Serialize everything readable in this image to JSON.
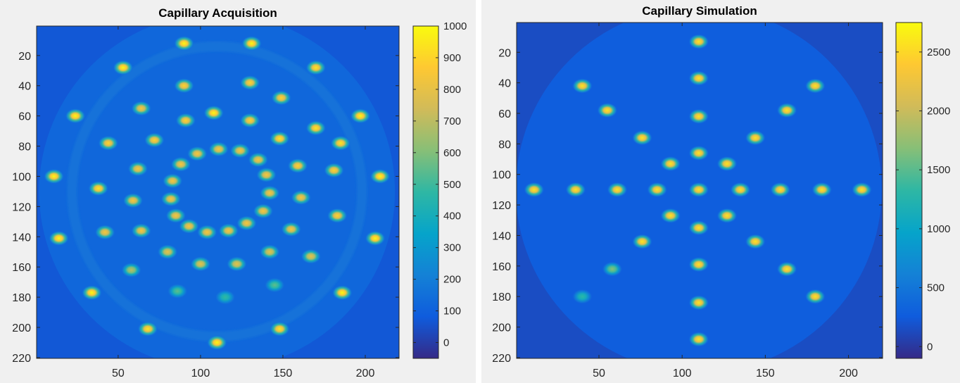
{
  "chart_data": [
    {
      "type": "heatmap",
      "title": "Capillary Acquisition",
      "colormap": "parula",
      "xlim": [
        0.5,
        220.5
      ],
      "ylim": [
        0.5,
        220.5
      ],
      "y_reversed": true,
      "xticks": [
        50,
        100,
        150,
        200
      ],
      "yticks": [
        20,
        40,
        60,
        80,
        100,
        120,
        140,
        160,
        180,
        200,
        220
      ],
      "colorbar": {
        "range": [
          -50,
          1000
        ],
        "ticks": [
          0,
          100,
          200,
          300,
          400,
          500,
          600,
          700,
          800,
          900,
          1000
        ]
      },
      "background_level": 70,
      "disk": {
        "center": [
          110,
          110
        ],
        "radius": 108,
        "level": 120
      },
      "ring": {
        "center": [
          110,
          110
        ],
        "radius": 88,
        "width": 6,
        "level": 160
      },
      "spots": [
        {
          "x": 90,
          "y": 12,
          "v": 1000
        },
        {
          "x": 131,
          "y": 12,
          "v": 1000
        },
        {
          "x": 53,
          "y": 28,
          "v": 1000
        },
        {
          "x": 170,
          "y": 28,
          "v": 950
        },
        {
          "x": 90,
          "y": 40,
          "v": 900
        },
        {
          "x": 130,
          "y": 38,
          "v": 900
        },
        {
          "x": 64,
          "y": 55,
          "v": 850
        },
        {
          "x": 149,
          "y": 48,
          "v": 900
        },
        {
          "x": 24,
          "y": 60,
          "v": 1000
        },
        {
          "x": 197,
          "y": 60,
          "v": 1000
        },
        {
          "x": 108,
          "y": 58,
          "v": 1000
        },
        {
          "x": 91,
          "y": 63,
          "v": 900
        },
        {
          "x": 130,
          "y": 63,
          "v": 900
        },
        {
          "x": 170,
          "y": 68,
          "v": 950
        },
        {
          "x": 44,
          "y": 78,
          "v": 900
        },
        {
          "x": 72,
          "y": 76,
          "v": 900
        },
        {
          "x": 148,
          "y": 75,
          "v": 950
        },
        {
          "x": 185,
          "y": 78,
          "v": 950
        },
        {
          "x": 98,
          "y": 85,
          "v": 850
        },
        {
          "x": 111,
          "y": 82,
          "v": 850
        },
        {
          "x": 124,
          "y": 83,
          "v": 850
        },
        {
          "x": 88,
          "y": 92,
          "v": 850
        },
        {
          "x": 135,
          "y": 89,
          "v": 850
        },
        {
          "x": 62,
          "y": 95,
          "v": 850
        },
        {
          "x": 159,
          "y": 93,
          "v": 900
        },
        {
          "x": 181,
          "y": 96,
          "v": 900
        },
        {
          "x": 11,
          "y": 100,
          "v": 1000
        },
        {
          "x": 209,
          "y": 100,
          "v": 1000
        },
        {
          "x": 83,
          "y": 103,
          "v": 850
        },
        {
          "x": 140,
          "y": 99,
          "v": 850
        },
        {
          "x": 38,
          "y": 108,
          "v": 950
        },
        {
          "x": 142,
          "y": 111,
          "v": 850
        },
        {
          "x": 82,
          "y": 115,
          "v": 850
        },
        {
          "x": 59,
          "y": 116,
          "v": 850
        },
        {
          "x": 161,
          "y": 114,
          "v": 850
        },
        {
          "x": 85,
          "y": 126,
          "v": 850
        },
        {
          "x": 138,
          "y": 123,
          "v": 850
        },
        {
          "x": 183,
          "y": 126,
          "v": 900
        },
        {
          "x": 64,
          "y": 136,
          "v": 850
        },
        {
          "x": 93,
          "y": 133,
          "v": 850
        },
        {
          "x": 128,
          "y": 131,
          "v": 850
        },
        {
          "x": 155,
          "y": 135,
          "v": 850
        },
        {
          "x": 42,
          "y": 137,
          "v": 850
        },
        {
          "x": 104,
          "y": 137,
          "v": 850
        },
        {
          "x": 117,
          "y": 136,
          "v": 850
        },
        {
          "x": 14,
          "y": 141,
          "v": 1000
        },
        {
          "x": 206,
          "y": 141,
          "v": 1000
        },
        {
          "x": 80,
          "y": 150,
          "v": 800
        },
        {
          "x": 142,
          "y": 150,
          "v": 800
        },
        {
          "x": 167,
          "y": 153,
          "v": 800
        },
        {
          "x": 100,
          "y": 158,
          "v": 800
        },
        {
          "x": 122,
          "y": 158,
          "v": 800
        },
        {
          "x": 58,
          "y": 162,
          "v": 700
        },
        {
          "x": 145,
          "y": 172,
          "v": 550
        },
        {
          "x": 86,
          "y": 176,
          "v": 550
        },
        {
          "x": 115,
          "y": 180,
          "v": 480
        },
        {
          "x": 34,
          "y": 177,
          "v": 1000
        },
        {
          "x": 186,
          "y": 177,
          "v": 1000
        },
        {
          "x": 68,
          "y": 201,
          "v": 950
        },
        {
          "x": 148,
          "y": 201,
          "v": 950
        },
        {
          "x": 110,
          "y": 210,
          "v": 1000
        }
      ]
    },
    {
      "type": "heatmap",
      "title": "Capillary Simulation",
      "colormap": "parula",
      "xlim": [
        0.5,
        220.5
      ],
      "ylim": [
        0.5,
        220.5
      ],
      "y_reversed": true,
      "xticks": [
        50,
        100,
        150,
        200
      ],
      "yticks": [
        20,
        40,
        60,
        80,
        100,
        120,
        140,
        160,
        180,
        200,
        220
      ],
      "colorbar": {
        "range": [
          -100,
          2750
        ],
        "ticks": [
          0,
          500,
          1000,
          1500,
          2000,
          2500
        ]
      },
      "background_level": 150,
      "disk": {
        "center": [
          110,
          110
        ],
        "radius": 110,
        "level": 280
      },
      "spots": [
        {
          "x": 110,
          "y": 13,
          "v": 2600
        },
        {
          "x": 110,
          "y": 37,
          "v": 2600
        },
        {
          "x": 40,
          "y": 42,
          "v": 2600
        },
        {
          "x": 180,
          "y": 42,
          "v": 2600
        },
        {
          "x": 55,
          "y": 58,
          "v": 2600
        },
        {
          "x": 163,
          "y": 58,
          "v": 2600
        },
        {
          "x": 110,
          "y": 62,
          "v": 2600
        },
        {
          "x": 76,
          "y": 76,
          "v": 2600
        },
        {
          "x": 144,
          "y": 76,
          "v": 2600
        },
        {
          "x": 110,
          "y": 86,
          "v": 2600
        },
        {
          "x": 93,
          "y": 93,
          "v": 2600
        },
        {
          "x": 127,
          "y": 93,
          "v": 2600
        },
        {
          "x": 11,
          "y": 110,
          "v": 2600
        },
        {
          "x": 36,
          "y": 110,
          "v": 2600
        },
        {
          "x": 61,
          "y": 110,
          "v": 2600
        },
        {
          "x": 85,
          "y": 110,
          "v": 2600
        },
        {
          "x": 110,
          "y": 110,
          "v": 2600
        },
        {
          "x": 135,
          "y": 110,
          "v": 2600
        },
        {
          "x": 159,
          "y": 110,
          "v": 2600
        },
        {
          "x": 184,
          "y": 110,
          "v": 2600
        },
        {
          "x": 208,
          "y": 110,
          "v": 2600
        },
        {
          "x": 93,
          "y": 127,
          "v": 2600
        },
        {
          "x": 127,
          "y": 127,
          "v": 2600
        },
        {
          "x": 110,
          "y": 135,
          "v": 2600
        },
        {
          "x": 76,
          "y": 144,
          "v": 2600
        },
        {
          "x": 144,
          "y": 144,
          "v": 2600
        },
        {
          "x": 110,
          "y": 159,
          "v": 2600
        },
        {
          "x": 58,
          "y": 162,
          "v": 1700
        },
        {
          "x": 163,
          "y": 162,
          "v": 2600
        },
        {
          "x": 40,
          "y": 180,
          "v": 1300
        },
        {
          "x": 180,
          "y": 180,
          "v": 2600
        },
        {
          "x": 110,
          "y": 184,
          "v": 2600
        },
        {
          "x": 110,
          "y": 208,
          "v": 2600
        }
      ]
    }
  ]
}
